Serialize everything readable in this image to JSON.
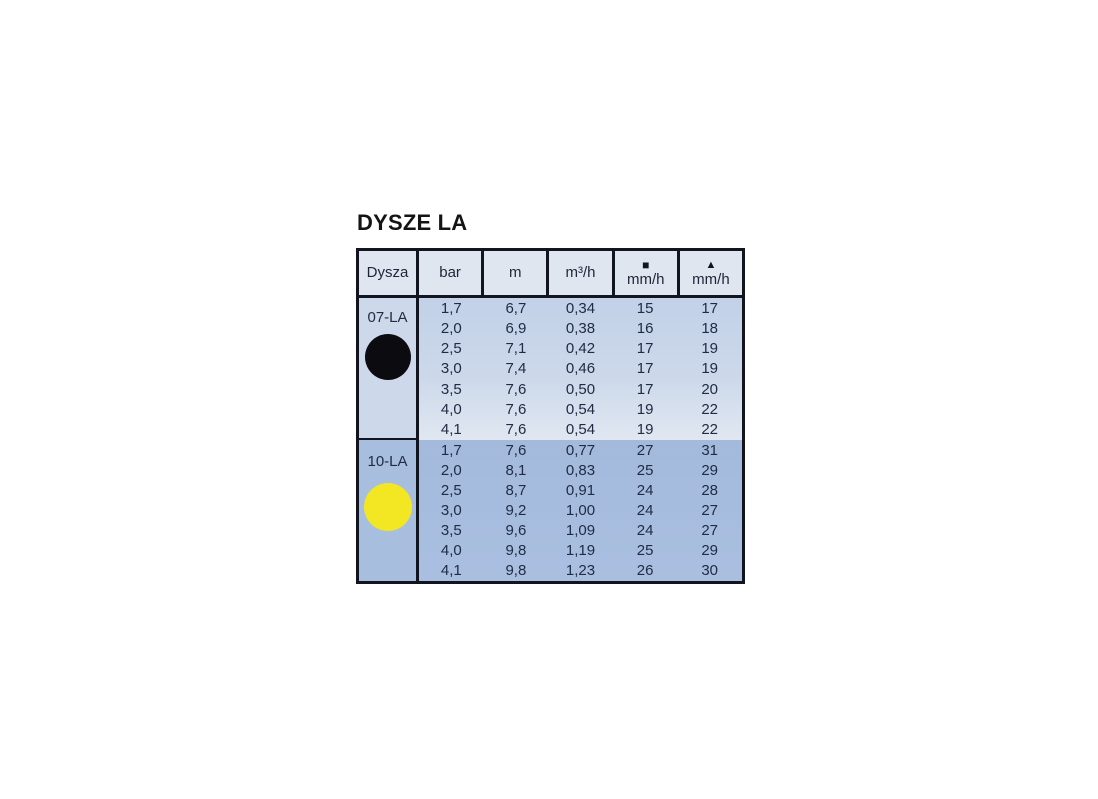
{
  "title": "DYSZE LA",
  "table": {
    "columns": [
      {
        "label": "Dysza"
      },
      {
        "label": "bar"
      },
      {
        "label": "m"
      },
      {
        "label": "m³/h"
      },
      {
        "symbol": "■",
        "label": "mm/h"
      },
      {
        "symbol": "▲",
        "label": "mm/h"
      }
    ],
    "groups": [
      {
        "name": "07-LA",
        "circle_color": "#0b0b10",
        "rows": [
          [
            "1,7",
            "6,7",
            "0,34",
            "15",
            "17"
          ],
          [
            "2,0",
            "6,9",
            "0,38",
            "16",
            "18"
          ],
          [
            "2,5",
            "7,1",
            "0,42",
            "17",
            "19"
          ],
          [
            "3,0",
            "7,4",
            "0,46",
            "17",
            "19"
          ],
          [
            "3,5",
            "7,6",
            "0,50",
            "17",
            "20"
          ],
          [
            "4,0",
            "7,6",
            "0,54",
            "19",
            "22"
          ],
          [
            "4,1",
            "7,6",
            "0,54",
            "19",
            "22"
          ]
        ]
      },
      {
        "name": "10-LA",
        "circle_color": "#f2e722",
        "rows": [
          [
            "1,7",
            "7,6",
            "0,77",
            "27",
            "31"
          ],
          [
            "2,0",
            "8,1",
            "0,83",
            "25",
            "29"
          ],
          [
            "2,5",
            "8,7",
            "0,91",
            "24",
            "28"
          ],
          [
            "3,0",
            "9,2",
            "1,00",
            "24",
            "27"
          ],
          [
            "3,5",
            "9,6",
            "1,09",
            "24",
            "27"
          ],
          [
            "4,0",
            "9,8",
            "1,19",
            "25",
            "29"
          ],
          [
            "4,1",
            "9,8",
            "1,23",
            "26",
            "30"
          ]
        ]
      }
    ]
  },
  "colors": {
    "table_border": "#12151f",
    "header_bg": "#e0e6f0",
    "group07_label_cell_bg": "#cdd8ea",
    "group07_rows_bg_top": "#c2d1e8",
    "group07_rows_bg_bottom": "#e0e7f1",
    "group10_bg": "#a8bedf",
    "text": "#202c44",
    "nozzle07_circle": "#0b0b10",
    "nozzle10_circle": "#f2e722"
  }
}
